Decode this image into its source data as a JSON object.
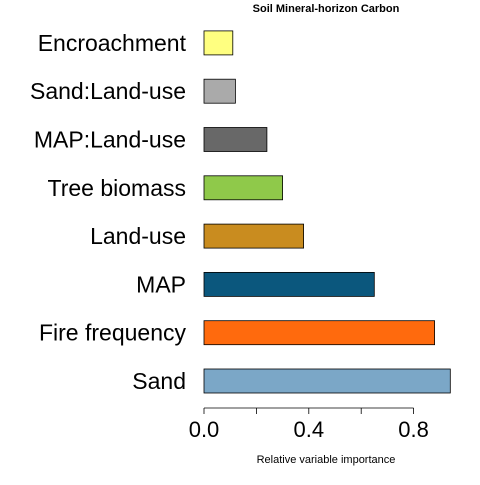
{
  "chart_data": {
    "type": "bar",
    "orientation": "horizontal",
    "title": "Soil Mineral-horizon Carbon",
    "xlabel": "Relative variable importance",
    "ylabel": "",
    "categories": [
      "Sand",
      "Fire frequency",
      "MAP",
      "Land-use",
      "Tree biomass",
      "MAP:Land-use",
      "Sand:Land-use",
      "Encroachment"
    ],
    "values": [
      0.94,
      0.88,
      0.65,
      0.38,
      0.3,
      0.24,
      0.12,
      0.11
    ],
    "colors": [
      "#7ba7c7",
      "#ff6a0d",
      "#0b577d",
      "#c98c1f",
      "#8fc94a",
      "#686868",
      "#aaaaaa",
      "#ffff80"
    ],
    "xlim": [
      0,
      0.95
    ],
    "xticks": [
      0.0,
      0.2,
      0.4,
      0.6,
      0.8
    ],
    "xtick_labels": [
      "0.0",
      "",
      "0.4",
      "",
      "0.8"
    ],
    "grid": false,
    "legend": "none"
  }
}
